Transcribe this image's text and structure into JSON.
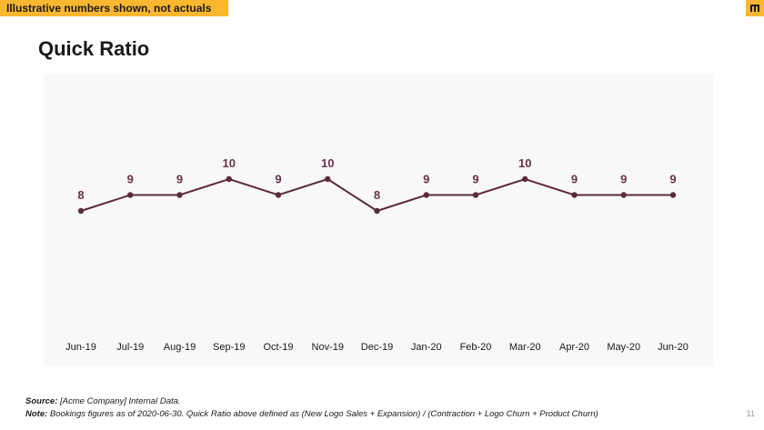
{
  "banner": {
    "text": "Illustrative numbers shown, not actuals"
  },
  "page_title": "Quick Ratio",
  "footnotes": {
    "source_label": "Source:",
    "source_text": " [Acme Company] Internal Data.",
    "note_label": "Note:",
    "note_text": " Bookings figures as of 2020-06-30.  Quick Ratio above defined as (New Logo Sales + Expansion) / (Contraction + Logo Churn + Product Churn)"
  },
  "page_number": "11",
  "colors": {
    "accent": "#fbb730",
    "series": "#5b2c3a",
    "label": "#6b3342",
    "plot_bg": "#f8f8f8"
  },
  "icons": {
    "logo": "brand-logo-icon"
  },
  "chart_data": {
    "type": "line",
    "title": "Quick Ratio",
    "xlabel": "",
    "ylabel": "",
    "categories": [
      "Jun-19",
      "Jul-19",
      "Aug-19",
      "Sep-19",
      "Oct-19",
      "Nov-19",
      "Dec-19",
      "Jan-20",
      "Feb-20",
      "Mar-20",
      "Apr-20",
      "May-20",
      "Jun-20"
    ],
    "series": [
      {
        "values": [
          8,
          9,
          9,
          10,
          9,
          10,
          8,
          9,
          9,
          10,
          9,
          9,
          9
        ]
      }
    ],
    "data_labels": true,
    "grid": false,
    "legend": "none"
  }
}
